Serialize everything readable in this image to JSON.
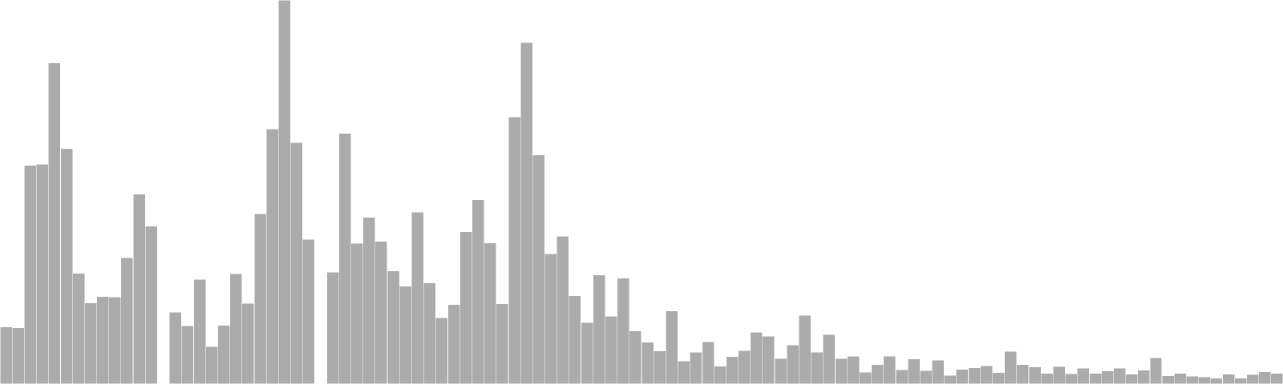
{
  "chart_data": {
    "type": "bar",
    "ylim": [
      0,
      100
    ],
    "grid": false,
    "legend": "none",
    "bar_color": "#ababab",
    "bar_edge_color": "#ffffff",
    "values": [
      14.9,
      14.6,
      56.9,
      57.2,
      83.6,
      61.3,
      28.8,
      21.1,
      22.8,
      22.7,
      32.9,
      49.4,
      41.1,
      0,
      18.7,
      15.2,
      27.3,
      9.8,
      15.3,
      28.7,
      21.0,
      44.3,
      66.4,
      100.0,
      62.9,
      37.7,
      0,
      29.1,
      65.3,
      36.6,
      43.4,
      37.1,
      29.4,
      25.5,
      44.7,
      26.3,
      17.2,
      20.7,
      39.6,
      48.0,
      36.7,
      20.9,
      69.5,
      88.9,
      59.6,
      33.9,
      38.5,
      23.0,
      16.0,
      28.4,
      17.7,
      27.6,
      13.8,
      10.9,
      8.6,
      19.0,
      6.0,
      8.3,
      11.0,
      4.6,
      7.1,
      8.7,
      13.5,
      12.5,
      6.6,
      10.2,
      17.9,
      8.3,
      12.9,
      6.6,
      7.3,
      3.1,
      5.1,
      7.3,
      3.7,
      6.5,
      3.5,
      6.2,
      2.2,
      3.8,
      4.2,
      4.7,
      3.0,
      8.5,
      5.1,
      4.4,
      2.8,
      4.5,
      2.7,
      4.1,
      2.8,
      3.4,
      4.1,
      2.6,
      3.6,
      6.8,
      2.1,
      2.8,
      2.0,
      1.8,
      1.5,
      2.6,
      1.5,
      2.5,
      3.2,
      2.8
    ]
  }
}
